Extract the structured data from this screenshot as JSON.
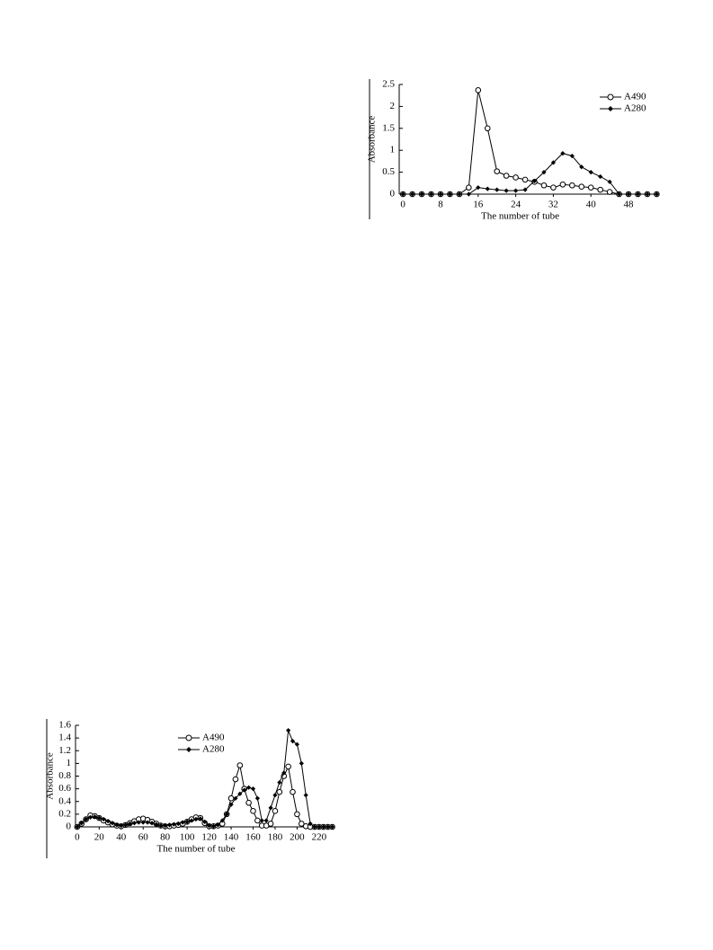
{
  "chart_data": [
    {
      "type": "line",
      "xlabel": "The number of tube",
      "ylabel": "Absorbance",
      "x": [
        0,
        2,
        4,
        6,
        8,
        10,
        12,
        14,
        16,
        18,
        20,
        22,
        24,
        26,
        28,
        30,
        32,
        34,
        36,
        38,
        40,
        42,
        44,
        46,
        48,
        50,
        52,
        54
      ],
      "series": [
        {
          "name": "A490",
          "color": "#000000",
          "marker": "circle",
          "values": [
            0,
            0,
            0,
            0,
            0,
            0,
            0,
            0.15,
            2.37,
            1.5,
            0.52,
            0.42,
            0.38,
            0.33,
            0.28,
            0.2,
            0.15,
            0.22,
            0.2,
            0.17,
            0.15,
            0.1,
            0.05,
            0,
            0,
            0,
            0,
            0
          ]
        },
        {
          "name": "A280",
          "color": "#000000",
          "marker": "diamond",
          "values": [
            0,
            0,
            0,
            0,
            0,
            0,
            0,
            0,
            0.15,
            0.12,
            0.1,
            0.08,
            0.08,
            0.1,
            0.3,
            0.5,
            0.72,
            0.93,
            0.87,
            0.62,
            0.5,
            0.4,
            0.28,
            0,
            0,
            0,
            0,
            0
          ]
        }
      ],
      "xlim": [
        -0.8,
        54.5
      ],
      "xticks": [
        0,
        8,
        16,
        24,
        32,
        40,
        48
      ],
      "ylim": [
        0,
        2.5
      ],
      "yticks": [
        0,
        0.5,
        1,
        1.5,
        2,
        2.5
      ],
      "grid": false,
      "legend": "upper right"
    },
    {
      "type": "line",
      "xlabel": "The number of tube",
      "ylabel": "Absorbance",
      "x": [
        0,
        4,
        8,
        12,
        16,
        20,
        24,
        28,
        32,
        36,
        40,
        44,
        48,
        52,
        56,
        60,
        64,
        68,
        72,
        76,
        80,
        84,
        88,
        92,
        96,
        100,
        104,
        108,
        112,
        116,
        120,
        124,
        128,
        132,
        136,
        140,
        144,
        148,
        152,
        156,
        160,
        164,
        168,
        172,
        176,
        180,
        184,
        188,
        192,
        196,
        200,
        204,
        208,
        212,
        216,
        220,
        224,
        228,
        232
      ],
      "series": [
        {
          "name": "A490",
          "color": "#000000",
          "marker": "circle",
          "values": [
            0,
            0.05,
            0.12,
            0.18,
            0.17,
            0.14,
            0.1,
            0.07,
            0.04,
            0.02,
            0.01,
            0.03,
            0.06,
            0.09,
            0.12,
            0.13,
            0.11,
            0.08,
            0.05,
            0.02,
            0.01,
            0.01,
            0.02,
            0.03,
            0.05,
            0.08,
            0.12,
            0.15,
            0.14,
            0.06,
            0.01,
            0.01,
            0.02,
            0.05,
            0.2,
            0.45,
            0.75,
            0.97,
            0.6,
            0.38,
            0.25,
            0.1,
            0.02,
            0.02,
            0.05,
            0.25,
            0.55,
            0.8,
            0.95,
            0.55,
            0.2,
            0.05,
            0.01,
            0,
            0,
            0,
            0,
            0,
            0
          ]
        },
        {
          "name": "A280",
          "color": "#000000",
          "marker": "diamond",
          "values": [
            0,
            0.06,
            0.12,
            0.15,
            0.16,
            0.14,
            0.12,
            0.09,
            0.06,
            0.03,
            0.02,
            0.03,
            0.05,
            0.06,
            0.07,
            0.07,
            0.07,
            0.06,
            0.04,
            0.02,
            0.02,
            0.03,
            0.04,
            0.05,
            0.07,
            0.08,
            0.1,
            0.12,
            0.13,
            0.08,
            0.02,
            0.01,
            0.03,
            0.1,
            0.2,
            0.35,
            0.45,
            0.52,
            0.58,
            0.62,
            0.6,
            0.45,
            0.1,
            0.1,
            0.3,
            0.5,
            0.7,
            0.85,
            1.52,
            1.35,
            1.3,
            1.0,
            0.5,
            0.05,
            0,
            0,
            0,
            0,
            0
          ]
        }
      ],
      "xlim": [
        -1.5,
        234
      ],
      "xticks": [
        0,
        20,
        40,
        60,
        80,
        100,
        120,
        140,
        160,
        180,
        200,
        220
      ],
      "ylim": [
        0,
        1.6
      ],
      "yticks": [
        0,
        0.2,
        0.4,
        0.6,
        0.8,
        1,
        1.2,
        1.4,
        1.6
      ],
      "grid": false,
      "legend": "upper center"
    }
  ]
}
